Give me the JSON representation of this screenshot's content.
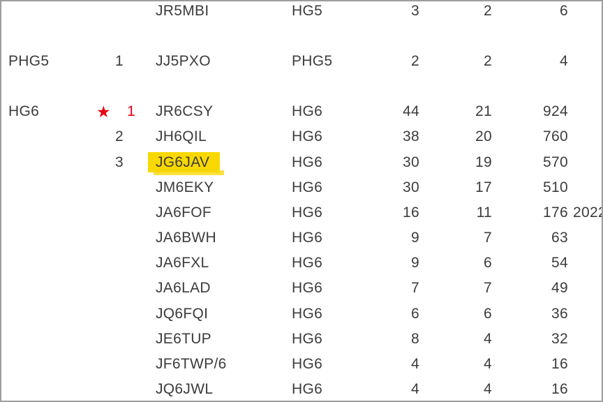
{
  "page": {
    "background": "#ffffff",
    "border_color": "#9d9d9d",
    "text_color": "#3c3c3c",
    "accent_red": "#e60012",
    "highlight_yellow": "#f8d800",
    "star_icon": "★"
  },
  "table": {
    "description": "contest-results-table",
    "columns": [
      "group",
      "rank",
      "callsign",
      "class",
      "qso",
      "multiplier",
      "score"
    ],
    "rows": [
      {
        "group": "",
        "rank": "",
        "callsign": "JR5MBI",
        "class": "HG5",
        "qso": "3",
        "multiplier": "2",
        "score": "6"
      },
      {
        "blank": true
      },
      {
        "group": "PHG5",
        "rank": "1",
        "callsign": "JJ5PXO",
        "class": "PHG5",
        "qso": "2",
        "multiplier": "2",
        "score": "4"
      },
      {
        "blank": true
      },
      {
        "group": "HG6",
        "rank": "1",
        "rank_red": true,
        "star": "★",
        "callsign": "JR6CSY",
        "class": "HG6",
        "qso": "44",
        "multiplier": "21",
        "score": "924"
      },
      {
        "group": "",
        "rank": "2",
        "callsign": "JH6QIL",
        "class": "HG6",
        "qso": "38",
        "multiplier": "20",
        "score": "760"
      },
      {
        "group": "",
        "rank": "3",
        "callsign": "JG6JAV",
        "highlight": true,
        "class": "HG6",
        "qso": "30",
        "multiplier": "19",
        "score": "570"
      },
      {
        "group": "",
        "rank": "",
        "callsign": "JM6EKY",
        "class": "HG6",
        "qso": "30",
        "multiplier": "17",
        "score": "510"
      },
      {
        "group": "",
        "rank": "",
        "callsign": "JA6FOF",
        "class": "HG6",
        "qso": "16",
        "multiplier": "11",
        "score": "176",
        "extra": "2022"
      },
      {
        "group": "",
        "rank": "",
        "callsign": "JA6BWH",
        "class": "HG6",
        "qso": "9",
        "multiplier": "7",
        "score": "63"
      },
      {
        "group": "",
        "rank": "",
        "callsign": "JA6FXL",
        "class": "HG6",
        "qso": "9",
        "multiplier": "6",
        "score": "54"
      },
      {
        "group": "",
        "rank": "",
        "callsign": "JA6LAD",
        "class": "HG6",
        "qso": "7",
        "multiplier": "7",
        "score": "49"
      },
      {
        "group": "",
        "rank": "",
        "callsign": "JQ6FQI",
        "class": "HG6",
        "qso": "6",
        "multiplier": "6",
        "score": "36"
      },
      {
        "group": "",
        "rank": "",
        "callsign": "JE6TUP",
        "class": "HG6",
        "qso": "8",
        "multiplier": "4",
        "score": "32"
      },
      {
        "group": "",
        "rank": "",
        "callsign": "JF6TWP/6",
        "class": "HG6",
        "qso": "4",
        "multiplier": "4",
        "score": "16"
      },
      {
        "group": "",
        "rank": "",
        "callsign": "JQ6JWL",
        "class": "HG6",
        "qso": "4",
        "multiplier": "4",
        "score": "16"
      }
    ]
  }
}
